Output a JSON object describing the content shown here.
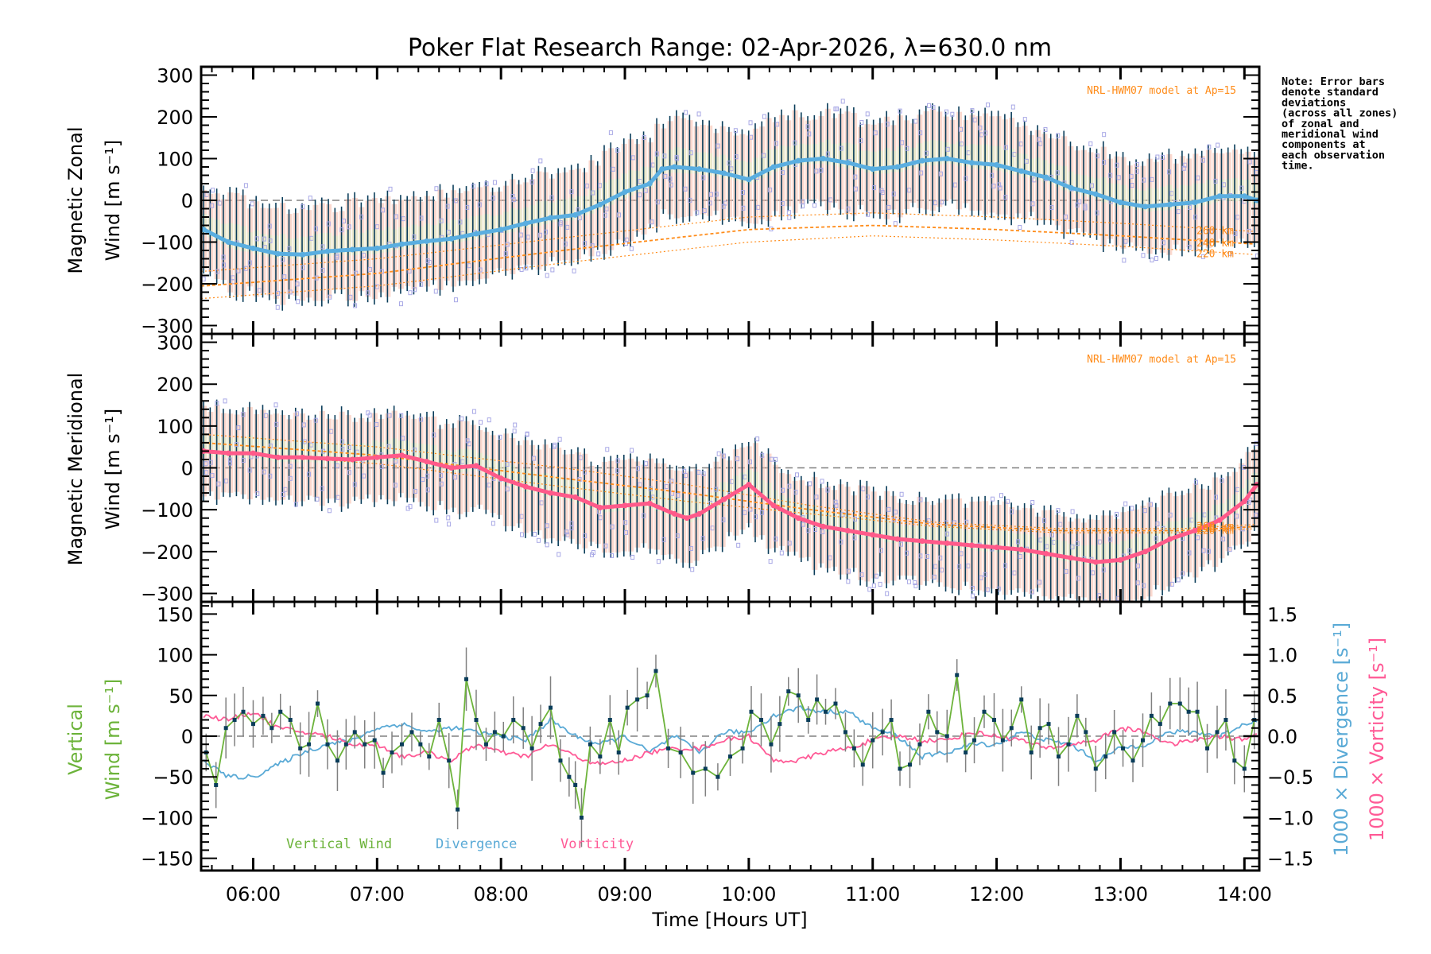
{
  "chart_data": {
    "type": "line",
    "title": "Poker Flat Research Range: 02-Apr-2026, λ=630.0 nm",
    "xlabel": "Time [Hours UT]",
    "xlim_hours": [
      5.58,
      14.12
    ],
    "x_ticks": [
      {
        "h": 6,
        "label": "06:00"
      },
      {
        "h": 7,
        "label": "07:00"
      },
      {
        "h": 8,
        "label": "08:00"
      },
      {
        "h": 9,
        "label": "09:00"
      },
      {
        "h": 10,
        "label": "10:00"
      },
      {
        "h": 11,
        "label": "11:00"
      },
      {
        "h": 12,
        "label": "12:00"
      },
      {
        "h": 13,
        "label": "13:00"
      },
      {
        "h": 14,
        "label": "14:00"
      }
    ],
    "note": [
      "Note: Error bars",
      "denote standard",
      "deviations",
      "(across all zones)",
      "of zonal and",
      "meridional wind",
      "components at",
      "each observation",
      "time."
    ],
    "colors": {
      "zonal_mean": "#5aaee0",
      "meridional_mean": "#ff5a8a",
      "error_bar": "#0a3d5a",
      "model": "#ff8c1a",
      "zone_scatter": "#a9a9e6",
      "vertical": "#6cb33a",
      "divergence": "#5aaad6",
      "vorticity": "#ff5a96",
      "zero_line": "#808080"
    },
    "panels": [
      {
        "id": "zonal",
        "ylabel_line1": "Magnetic Zonal",
        "ylabel_line2": "Wind [m s⁻¹]",
        "ylim": [
          -320,
          320
        ],
        "y_ticks": [
          300,
          200,
          100,
          0,
          -100,
          -200,
          -300
        ],
        "y_tick_labels": [
          "300",
          "200",
          "100",
          "0",
          "−100",
          "−200",
          "−300"
        ],
        "model_label": "NRL-HWM07 model at Ap=15",
        "model_altitude_labels": [
          "260 km",
          "240 km",
          "220 km"
        ],
        "mean_series": {
          "hours": [
            5.6,
            5.8,
            6.0,
            6.2,
            6.4,
            6.6,
            6.8,
            7.0,
            7.2,
            7.4,
            7.6,
            7.8,
            8.0,
            8.2,
            8.4,
            8.6,
            8.8,
            9.0,
            9.2,
            9.3,
            9.4,
            9.6,
            9.8,
            10.0,
            10.2,
            10.4,
            10.6,
            10.8,
            11.0,
            11.2,
            11.4,
            11.6,
            11.8,
            12.0,
            12.2,
            12.4,
            12.6,
            12.8,
            13.0,
            13.2,
            13.4,
            13.6,
            13.8,
            14.0,
            14.1
          ],
          "values": [
            -70,
            -100,
            -115,
            -128,
            -130,
            -122,
            -118,
            -115,
            -105,
            -98,
            -92,
            -80,
            -70,
            -55,
            -42,
            -35,
            -10,
            20,
            40,
            75,
            80,
            75,
            65,
            50,
            80,
            95,
            100,
            90,
            75,
            80,
            95,
            100,
            90,
            85,
            70,
            55,
            30,
            15,
            -5,
            -15,
            -10,
            -5,
            10,
            10,
            0
          ]
        },
        "error_half_width": 120,
        "model_curves": [
          {
            "label": "260 km",
            "hours": [
              5.6,
              7.0,
              8.5,
              10.0,
              11.0,
              12.0,
              13.0,
              14.1
            ],
            "values": [
              -170,
              -140,
              -90,
              -40,
              -30,
              -40,
              -55,
              -75
            ]
          },
          {
            "label": "240 km",
            "hours": [
              5.6,
              7.0,
              8.5,
              10.0,
              11.0,
              12.0,
              13.0,
              14.1
            ],
            "values": [
              -205,
              -175,
              -120,
              -70,
              -60,
              -70,
              -85,
              -105
            ]
          },
          {
            "label": "220 km",
            "hours": [
              5.6,
              7.0,
              8.5,
              10.0,
              11.0,
              12.0,
              13.0,
              14.1
            ],
            "values": [
              -235,
              -205,
              -150,
              -100,
              -85,
              -95,
              -110,
              -130
            ]
          }
        ]
      },
      {
        "id": "meridional",
        "ylabel_line1": "Magnetic Meridional",
        "ylabel_line2": "Wind [m s⁻¹]",
        "ylim": [
          -320,
          320
        ],
        "y_ticks": [
          300,
          200,
          100,
          0,
          -100,
          -200,
          -300
        ],
        "y_tick_labels": [
          "300",
          "200",
          "100",
          "0",
          "−100",
          "−200",
          "−300"
        ],
        "model_label": "NRL-HWM07 model at Ap=15",
        "model_altitude_labels": [
          "260 km",
          "240 km",
          "220 km"
        ],
        "mean_series": {
          "hours": [
            5.6,
            5.8,
            6.0,
            6.2,
            6.4,
            6.6,
            6.8,
            7.0,
            7.2,
            7.4,
            7.6,
            7.8,
            8.0,
            8.2,
            8.4,
            8.6,
            8.8,
            9.0,
            9.2,
            9.4,
            9.5,
            9.6,
            9.8,
            10.0,
            10.2,
            10.4,
            10.6,
            10.8,
            11.0,
            11.2,
            11.4,
            11.6,
            11.8,
            12.0,
            12.2,
            12.4,
            12.6,
            12.8,
            13.0,
            13.2,
            13.4,
            13.6,
            13.8,
            14.0,
            14.1
          ],
          "values": [
            40,
            35,
            35,
            25,
            25,
            22,
            20,
            25,
            30,
            15,
            0,
            5,
            -25,
            -45,
            -60,
            -70,
            -95,
            -90,
            -85,
            -110,
            -120,
            -110,
            -75,
            -40,
            -90,
            -120,
            -140,
            -150,
            -160,
            -170,
            -175,
            -180,
            -185,
            -190,
            -195,
            -205,
            -215,
            -225,
            -220,
            -200,
            -170,
            -150,
            -125,
            -80,
            -40
          ]
        },
        "error_half_width": 110,
        "model_curves": [
          {
            "label": "260 km",
            "hours": [
              5.6,
              7.0,
              8.5,
              9.5,
              10.5,
              11.5,
              12.5,
              13.5,
              14.1
            ],
            "values": [
              80,
              50,
              0,
              -40,
              -90,
              -130,
              -145,
              -145,
              -135
            ]
          },
          {
            "label": "240 km",
            "hours": [
              5.6,
              7.0,
              8.5,
              9.5,
              10.5,
              11.5,
              12.5,
              13.5,
              14.1
            ],
            "values": [
              60,
              30,
              -25,
              -60,
              -100,
              -135,
              -150,
              -150,
              -140
            ]
          },
          {
            "label": "220 km",
            "hours": [
              5.6,
              7.0,
              8.5,
              9.5,
              10.5,
              11.5,
              12.5,
              13.5,
              14.1
            ],
            "values": [
              40,
              10,
              -45,
              -80,
              -110,
              -140,
              -155,
              -155,
              -145
            ]
          }
        ]
      },
      {
        "id": "vertical",
        "ylabel_line1": "Vertical",
        "ylabel_line2": "Wind [m s⁻¹]",
        "ylim": [
          -165,
          165
        ],
        "y_ticks": [
          150,
          100,
          50,
          0,
          -50,
          -100,
          -150
        ],
        "y_tick_labels": [
          "150",
          "100",
          "50",
          "0",
          "−50",
          "−100",
          "−150"
        ],
        "y2lim": [
          -1.65,
          1.65
        ],
        "y2_ticks": [
          1.5,
          1.0,
          0.5,
          0.0,
          -0.5,
          -1.0,
          -1.5
        ],
        "y2_tick_labels": [
          "1.5",
          "1.0",
          "0.5",
          "0.0",
          "−0.5",
          "−1.0",
          "−1.5"
        ],
        "y2_label_divergence": "1000 × Divergence [s⁻¹]",
        "y2_label_vorticity": "1000 × Vorticity [s⁻¹]",
        "legend": [
          {
            "label": "Vertical Wind",
            "color": "#6cb33a"
          },
          {
            "label": "Divergence",
            "color": "#5aaad6"
          },
          {
            "label": "Vorticity",
            "color": "#ff5a96"
          }
        ],
        "vertical_wind": {
          "hours": [
            5.62,
            5.7,
            5.78,
            5.85,
            5.92,
            6.0,
            6.08,
            6.15,
            6.22,
            6.3,
            6.38,
            6.45,
            6.52,
            6.6,
            6.68,
            6.75,
            6.82,
            6.9,
            6.98,
            7.05,
            7.12,
            7.2,
            7.28,
            7.35,
            7.42,
            7.5,
            7.58,
            7.65,
            7.72,
            7.8,
            7.88,
            7.95,
            8.02,
            8.1,
            8.18,
            8.25,
            8.32,
            8.4,
            8.48,
            8.55,
            8.6,
            8.65,
            8.72,
            8.8,
            8.88,
            8.95,
            9.02,
            9.1,
            9.18,
            9.25,
            9.35,
            9.45,
            9.55,
            9.65,
            9.75,
            9.85,
            9.95,
            10.02,
            10.1,
            10.18,
            10.25,
            10.32,
            10.4,
            10.48,
            10.55,
            10.62,
            10.7,
            10.78,
            10.85,
            10.92,
            11.0,
            11.08,
            11.15,
            11.22,
            11.3,
            11.38,
            11.45,
            11.52,
            11.6,
            11.68,
            11.75,
            11.82,
            11.9,
            11.98,
            12.05,
            12.12,
            12.2,
            12.28,
            12.35,
            12.42,
            12.5,
            12.58,
            12.65,
            12.72,
            12.8,
            12.88,
            12.95,
            13.02,
            13.1,
            13.18,
            13.25,
            13.32,
            13.4,
            13.48,
            13.55,
            13.62,
            13.7,
            13.78,
            13.85,
            13.92,
            14.0,
            14.08
          ],
          "values": [
            -20,
            -60,
            10,
            20,
            30,
            15,
            25,
            10,
            30,
            20,
            -15,
            -10,
            40,
            -10,
            -30,
            -10,
            5,
            -10,
            -5,
            -45,
            -20,
            -10,
            5,
            -10,
            -25,
            20,
            -30,
            -90,
            70,
            20,
            -10,
            5,
            0,
            20,
            10,
            -15,
            15,
            35,
            -30,
            -50,
            -60,
            -100,
            -10,
            -25,
            20,
            -20,
            35,
            45,
            50,
            80,
            -15,
            -20,
            -45,
            -40,
            -50,
            -25,
            -15,
            30,
            20,
            -10,
            15,
            55,
            50,
            20,
            45,
            30,
            40,
            5,
            -15,
            -35,
            -5,
            5,
            20,
            -40,
            -35,
            -10,
            30,
            5,
            0,
            75,
            -20,
            -5,
            30,
            20,
            -5,
            10,
            45,
            -20,
            10,
            15,
            -25,
            -10,
            25,
            5,
            -40,
            -25,
            5,
            -15,
            -30,
            -5,
            25,
            15,
            40,
            40,
            30,
            30,
            -15,
            5,
            20,
            -30,
            -40,
            20
          ]
        },
        "divergence": {
          "hours": [
            5.6,
            5.8,
            6.0,
            6.2,
            6.4,
            6.6,
            6.8,
            7.0,
            7.2,
            7.4,
            7.6,
            7.8,
            8.0,
            8.2,
            8.4,
            8.6,
            8.8,
            9.0,
            9.2,
            9.4,
            9.6,
            9.8,
            10.0,
            10.2,
            10.4,
            10.6,
            10.8,
            11.0,
            11.2,
            11.4,
            11.6,
            11.8,
            12.0,
            12.2,
            12.4,
            12.6,
            12.8,
            13.0,
            13.2,
            13.4,
            13.6,
            13.8,
            14.0,
            14.1
          ],
          "values": [
            -0.3,
            -0.5,
            -0.5,
            -0.35,
            -0.2,
            -0.1,
            -0.05,
            0.1,
            0.15,
            0.05,
            0.1,
            0.05,
            0.0,
            -0.05,
            0.2,
            0.0,
            -0.1,
            0.0,
            -0.2,
            0.0,
            -0.2,
            0.05,
            0.05,
            0.25,
            0.35,
            0.3,
            0.3,
            0.1,
            0.0,
            -0.25,
            -0.2,
            -0.1,
            -0.1,
            0.05,
            -0.05,
            -0.1,
            -0.3,
            -0.15,
            -0.1,
            0.05,
            0.05,
            0.0,
            0.15,
            0.2
          ]
        },
        "vorticity": {
          "hours": [
            5.6,
            5.8,
            6.0,
            6.2,
            6.4,
            6.6,
            6.8,
            7.0,
            7.2,
            7.4,
            7.6,
            7.8,
            8.0,
            8.2,
            8.4,
            8.6,
            8.8,
            9.0,
            9.2,
            9.4,
            9.6,
            9.8,
            10.0,
            10.2,
            10.4,
            10.6,
            10.8,
            11.0,
            11.2,
            11.4,
            11.6,
            11.8,
            12.0,
            12.2,
            12.4,
            12.6,
            12.8,
            13.0,
            13.2,
            13.4,
            13.6,
            13.8,
            14.0,
            14.1
          ],
          "values": [
            0.25,
            0.2,
            0.3,
            0.1,
            0.05,
            0.0,
            -0.1,
            -0.1,
            -0.25,
            -0.2,
            -0.3,
            -0.1,
            -0.2,
            -0.25,
            -0.1,
            -0.25,
            -0.35,
            -0.3,
            -0.2,
            -0.15,
            -0.15,
            -0.05,
            0.0,
            -0.3,
            -0.3,
            -0.2,
            -0.15,
            -0.05,
            0.0,
            -0.05,
            -0.05,
            0.05,
            0.0,
            -0.05,
            -0.15,
            -0.1,
            -0.05,
            0.1,
            0.05,
            -0.1,
            -0.05,
            0.0,
            -0.05,
            0.05
          ]
        }
      }
    ]
  }
}
